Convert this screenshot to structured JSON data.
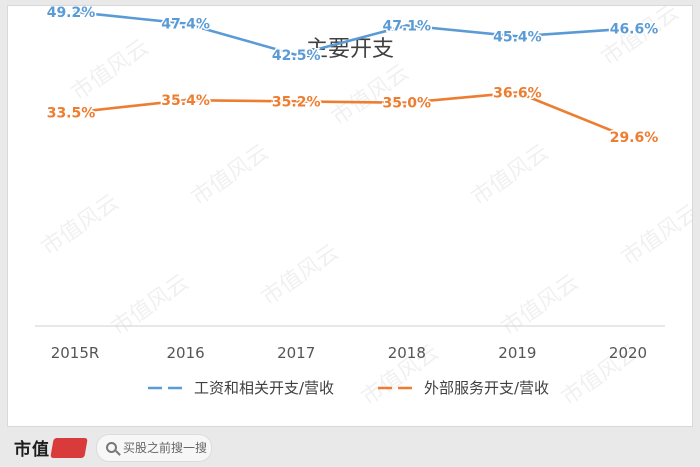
{
  "chart_data": {
    "type": "line",
    "title": "主要开支",
    "categories": [
      "2015R",
      "2016",
      "2017",
      "2018",
      "2019",
      "2020"
    ],
    "ylim": [
      0,
      60
    ],
    "grid": false,
    "legend_position": "bottom",
    "series": [
      {
        "name": "工资和相关开支/营收",
        "color": "#5b9bd5",
        "values": [
          49.2,
          47.4,
          42.5,
          47.1,
          45.4,
          46.6
        ],
        "labels": [
          "49.2%",
          "47.4%",
          "42.5%",
          "47.1%",
          "45.4%",
          "46.6%"
        ]
      },
      {
        "name": "外部服务开支/营收",
        "color": "#ed7d31",
        "values": [
          33.5,
          35.4,
          35.2,
          35.0,
          36.6,
          29.6
        ],
        "labels": [
          "33.5%",
          "35.4%",
          "35.2%",
          "35.0%",
          "36.6%",
          "29.6%"
        ]
      }
    ]
  },
  "watermark": "市值风云",
  "footer": {
    "brand": "市值",
    "brand_logo": "风云-logo",
    "search_placeholder": "买股之前搜一搜",
    "search_icon": "search-icon"
  }
}
